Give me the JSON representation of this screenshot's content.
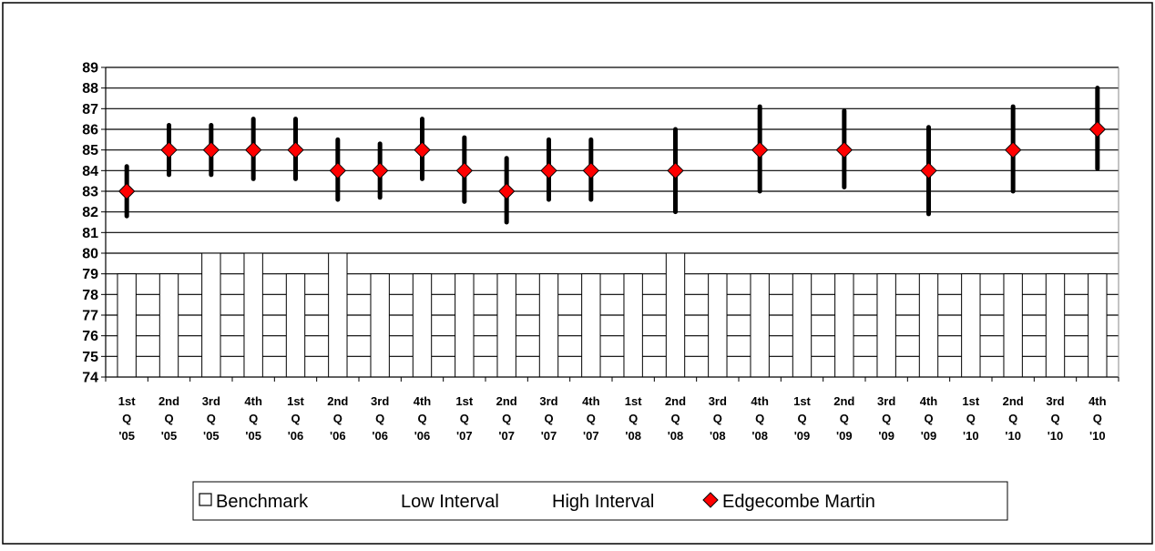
{
  "chart_data": {
    "type": "bar",
    "categories": [
      [
        "1st",
        "Q",
        "'05"
      ],
      [
        "2nd",
        "Q",
        "'05"
      ],
      [
        "3rd",
        "Q",
        "'05"
      ],
      [
        "4th",
        "Q",
        "'05"
      ],
      [
        "1st",
        "Q",
        "'06"
      ],
      [
        "2nd",
        "Q",
        "'06"
      ],
      [
        "3rd",
        "Q",
        "'06"
      ],
      [
        "4th",
        "Q",
        "'06"
      ],
      [
        "1st",
        "Q",
        "'07"
      ],
      [
        "2nd",
        "Q",
        "'07"
      ],
      [
        "3rd",
        "Q",
        "'07"
      ],
      [
        "4th",
        "Q",
        "'07"
      ],
      [
        "1st",
        "Q",
        "'08"
      ],
      [
        "2nd",
        "Q",
        "'08"
      ],
      [
        "3rd",
        "Q",
        "'08"
      ],
      [
        "4th",
        "Q",
        "'08"
      ],
      [
        "1st",
        "Q",
        "'09"
      ],
      [
        "2nd",
        "Q",
        "'09"
      ],
      [
        "3rd",
        "Q",
        "'09"
      ],
      [
        "4th",
        "Q",
        "'09"
      ],
      [
        "1st",
        "Q",
        "'10"
      ],
      [
        "2nd",
        "Q",
        "'10"
      ],
      [
        "3rd",
        "Q",
        "'10"
      ],
      [
        "4th",
        "Q",
        "'10"
      ]
    ],
    "ylim": [
      74,
      89
    ],
    "yticks": [
      "74",
      "75",
      "76",
      "77",
      "78",
      "79",
      "80",
      "81",
      "82",
      "83",
      "84",
      "85",
      "86",
      "87",
      "88",
      "89"
    ],
    "grid": true,
    "legend_position": "bottom",
    "series": [
      {
        "name": "Benchmark",
        "kind": "bar",
        "values": [
          79,
          79,
          80,
          80,
          79,
          80,
          79,
          79,
          79,
          79,
          79,
          79,
          79,
          80,
          79,
          79,
          79,
          79,
          79,
          79,
          79,
          79,
          79,
          79
        ]
      },
      {
        "name": "Low Interval",
        "kind": "error-low",
        "values": [
          81.8,
          83.8,
          83.8,
          83.6,
          83.6,
          82.6,
          82.7,
          83.6,
          82.5,
          81.5,
          82.6,
          82.6,
          null,
          82.0,
          null,
          83.0,
          null,
          83.2,
          null,
          81.9,
          null,
          83.0,
          null,
          84.1
        ]
      },
      {
        "name": "High Interval",
        "kind": "error-high",
        "values": [
          84.2,
          86.2,
          86.2,
          86.5,
          86.5,
          85.5,
          85.3,
          86.5,
          85.6,
          84.6,
          85.5,
          85.5,
          null,
          86.0,
          null,
          87.1,
          null,
          86.9,
          null,
          86.1,
          null,
          87.1,
          null,
          88.0
        ]
      },
      {
        "name": "Edgecombe Martin",
        "kind": "marker",
        "values": [
          83,
          85,
          85,
          85,
          85,
          84,
          84,
          85,
          84,
          83,
          84,
          84,
          null,
          84,
          null,
          85,
          null,
          85,
          null,
          84,
          null,
          85,
          null,
          86
        ],
        "color": "#ff0000"
      }
    ],
    "legend": [
      "Benchmark",
      "Low Interval",
      "High Interval",
      "Edgecombe Martin"
    ]
  }
}
